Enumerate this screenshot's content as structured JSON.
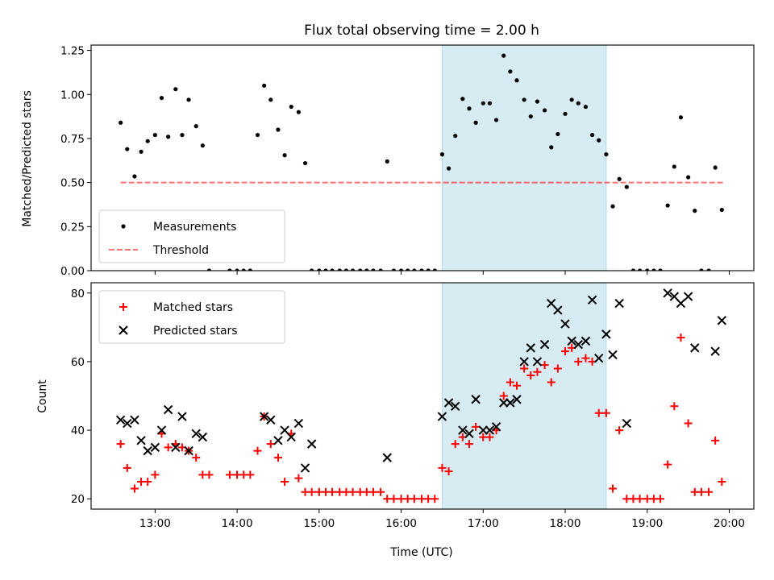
{
  "title": "Flux total observing time = 2.00 h",
  "colors": {
    "highlight": "#add8e6",
    "threshold": "#ff0000",
    "measurements": "#000000",
    "matched": "#ff0000",
    "predicted": "#000000"
  },
  "chart_data": [
    {
      "type": "scatter",
      "ylabel": "Matched/Predicted stars",
      "xlim": [
        12.22,
        20.3
      ],
      "ylim": [
        0,
        1.28
      ],
      "yticks": [
        0.0,
        0.25,
        0.5,
        0.75,
        1.0,
        1.25
      ],
      "ytick_labels": [
        "0.00",
        "0.25",
        "0.50",
        "0.75",
        "1.00",
        "1.25"
      ],
      "xticks": [
        13,
        14,
        15,
        16,
        17,
        18,
        19,
        20
      ],
      "highlight_span": [
        16.5,
        18.5
      ],
      "legend": {
        "placement": "lower-left",
        "entries": [
          "Measurements",
          "Threshold"
        ]
      },
      "threshold": {
        "name": "Threshold",
        "x": [
          12.58,
          19.95
        ],
        "y": 0.5,
        "style": "dashed"
      },
      "series": [
        {
          "name": "Measurements",
          "marker": "dot",
          "x": [
            12.58,
            12.66,
            12.75,
            12.83,
            12.91,
            13.0,
            13.08,
            13.16,
            13.25,
            13.33,
            13.41,
            13.5,
            13.58,
            13.66,
            13.91,
            14.0,
            14.08,
            14.16,
            14.25,
            14.33,
            14.41,
            14.5,
            14.58,
            14.66,
            14.75,
            14.83,
            14.91,
            15.0,
            15.08,
            15.16,
            15.25,
            15.33,
            15.41,
            15.5,
            15.58,
            15.66,
            15.75,
            15.83,
            15.91,
            16.0,
            16.08,
            16.16,
            16.25,
            16.33,
            16.41,
            16.5,
            16.58,
            16.66,
            16.75,
            16.83,
            16.91,
            17.0,
            17.08,
            17.16,
            17.25,
            17.33,
            17.41,
            17.5,
            17.58,
            17.66,
            17.75,
            17.83,
            17.91,
            18.0,
            18.08,
            18.16,
            18.25,
            18.33,
            18.41,
            18.5,
            18.58,
            18.66,
            18.75,
            18.83,
            18.91,
            19.0,
            19.08,
            19.16,
            19.25,
            19.33,
            19.41,
            19.5,
            19.58,
            19.66,
            19.75,
            19.83,
            19.91
          ],
          "y": [
            0.84,
            0.69,
            0.535,
            0.675,
            0.735,
            0.77,
            0.98,
            0.76,
            1.03,
            0.77,
            0.97,
            0.82,
            0.71,
            0.0,
            0.0,
            0.0,
            0.0,
            0.0,
            0.77,
            1.05,
            0.97,
            0.8,
            0.655,
            0.93,
            0.9,
            0.61,
            0.0,
            0.0,
            0.0,
            0.0,
            0.0,
            0.0,
            0.0,
            0.0,
            0.0,
            0.0,
            0.0,
            0.62,
            0.0,
            0.0,
            0.0,
            0.0,
            0.0,
            0.0,
            0.0,
            0.66,
            0.58,
            0.765,
            0.975,
            0.92,
            0.84,
            0.95,
            0.95,
            0.855,
            1.22,
            1.13,
            1.08,
            0.97,
            0.875,
            0.96,
            0.91,
            0.7,
            0.775,
            0.89,
            0.97,
            0.95,
            0.93,
            0.77,
            0.74,
            0.66,
            0.365,
            0.52,
            0.475,
            0.0,
            0.0,
            0.0,
            0.0,
            0.0,
            0.37,
            0.59,
            0.87,
            0.53,
            0.34,
            0.0,
            0.0,
            0.585,
            0.345
          ]
        }
      ]
    },
    {
      "type": "scatter",
      "xlabel": "Time (UTC)",
      "ylabel": "Count",
      "xlim": [
        12.22,
        20.3
      ],
      "ylim": [
        17,
        83
      ],
      "yticks": [
        20,
        40,
        60,
        80
      ],
      "ytick_labels": [
        "20",
        "40",
        "60",
        "80"
      ],
      "xticks": [
        13,
        14,
        15,
        16,
        17,
        18,
        19,
        20
      ],
      "xtick_labels": [
        "13:00",
        "14:00",
        "15:00",
        "16:00",
        "17:00",
        "18:00",
        "19:00",
        "20:00"
      ],
      "highlight_span": [
        16.5,
        18.5
      ],
      "legend": {
        "placement": "upper-left",
        "entries": [
          "Matched stars",
          "Predicted stars"
        ]
      },
      "series": [
        {
          "name": "Matched stars",
          "marker": "plus",
          "x": [
            12.58,
            12.66,
            12.75,
            12.83,
            12.91,
            13.0,
            13.08,
            13.16,
            13.25,
            13.33,
            13.41,
            13.5,
            13.58,
            13.66,
            13.91,
            14.0,
            14.08,
            14.16,
            14.25,
            14.33,
            14.41,
            14.5,
            14.58,
            14.66,
            14.75,
            14.83,
            14.91,
            15.0,
            15.08,
            15.16,
            15.25,
            15.33,
            15.41,
            15.5,
            15.58,
            15.66,
            15.75,
            15.83,
            15.91,
            16.0,
            16.08,
            16.16,
            16.25,
            16.33,
            16.41,
            16.5,
            16.58,
            16.66,
            16.75,
            16.83,
            16.91,
            17.0,
            17.08,
            17.16,
            17.25,
            17.33,
            17.41,
            17.5,
            17.58,
            17.66,
            17.75,
            17.83,
            17.91,
            18.0,
            18.08,
            18.16,
            18.25,
            18.33,
            18.41,
            18.5,
            18.58,
            18.66,
            18.75,
            18.83,
            18.91,
            19.0,
            19.08,
            19.16,
            19.25,
            19.33,
            19.41,
            19.5,
            19.58,
            19.66,
            19.75,
            19.83,
            19.91
          ],
          "y": [
            36,
            29,
            23,
            25,
            25,
            27,
            39,
            35,
            36,
            35,
            34,
            32,
            27,
            27,
            27,
            27,
            27,
            27,
            34,
            44,
            36,
            32,
            25,
            39,
            26,
            22,
            22,
            22,
            22,
            22,
            22,
            22,
            22,
            22,
            22,
            22,
            22,
            20,
            20,
            20,
            20,
            20,
            20,
            20,
            20,
            29,
            28,
            36,
            38,
            36,
            41,
            38,
            38,
            40,
            50,
            54,
            53,
            58,
            56,
            57,
            59,
            54,
            58,
            63,
            64,
            60,
            61,
            60,
            45,
            45,
            23,
            40,
            20,
            20,
            20,
            20,
            20,
            20,
            30,
            47,
            67,
            42,
            22,
            22,
            22,
            37,
            25
          ]
        },
        {
          "name": "Predicted stars",
          "marker": "x",
          "x": [
            12.58,
            12.66,
            12.75,
            12.83,
            12.91,
            13.0,
            13.08,
            13.16,
            13.25,
            13.33,
            13.41,
            13.5,
            13.58,
            14.33,
            14.41,
            14.5,
            14.58,
            14.66,
            14.75,
            14.83,
            14.91,
            15.83,
            16.5,
            16.58,
            16.66,
            16.75,
            16.83,
            16.91,
            17.0,
            17.08,
            17.16,
            17.25,
            17.33,
            17.41,
            17.5,
            17.58,
            17.66,
            17.75,
            17.83,
            17.91,
            18.0,
            18.08,
            18.16,
            18.25,
            18.33,
            18.41,
            18.5,
            18.58,
            18.66,
            18.75,
            19.25,
            19.33,
            19.41,
            19.5,
            19.58,
            19.83,
            19.91
          ],
          "y": [
            43,
            42,
            43,
            37,
            34,
            35,
            40,
            46,
            35,
            44,
            34,
            39,
            38,
            44,
            43,
            37,
            40,
            38,
            42,
            29,
            36,
            32,
            44,
            48,
            47,
            40,
            39,
            49,
            40,
            40,
            41,
            48,
            48,
            49,
            60,
            64,
            60,
            65,
            77,
            75,
            71,
            66,
            65,
            66,
            78,
            61,
            68,
            62,
            77,
            42,
            80,
            79,
            77,
            79,
            64,
            63,
            72
          ]
        }
      ]
    }
  ]
}
